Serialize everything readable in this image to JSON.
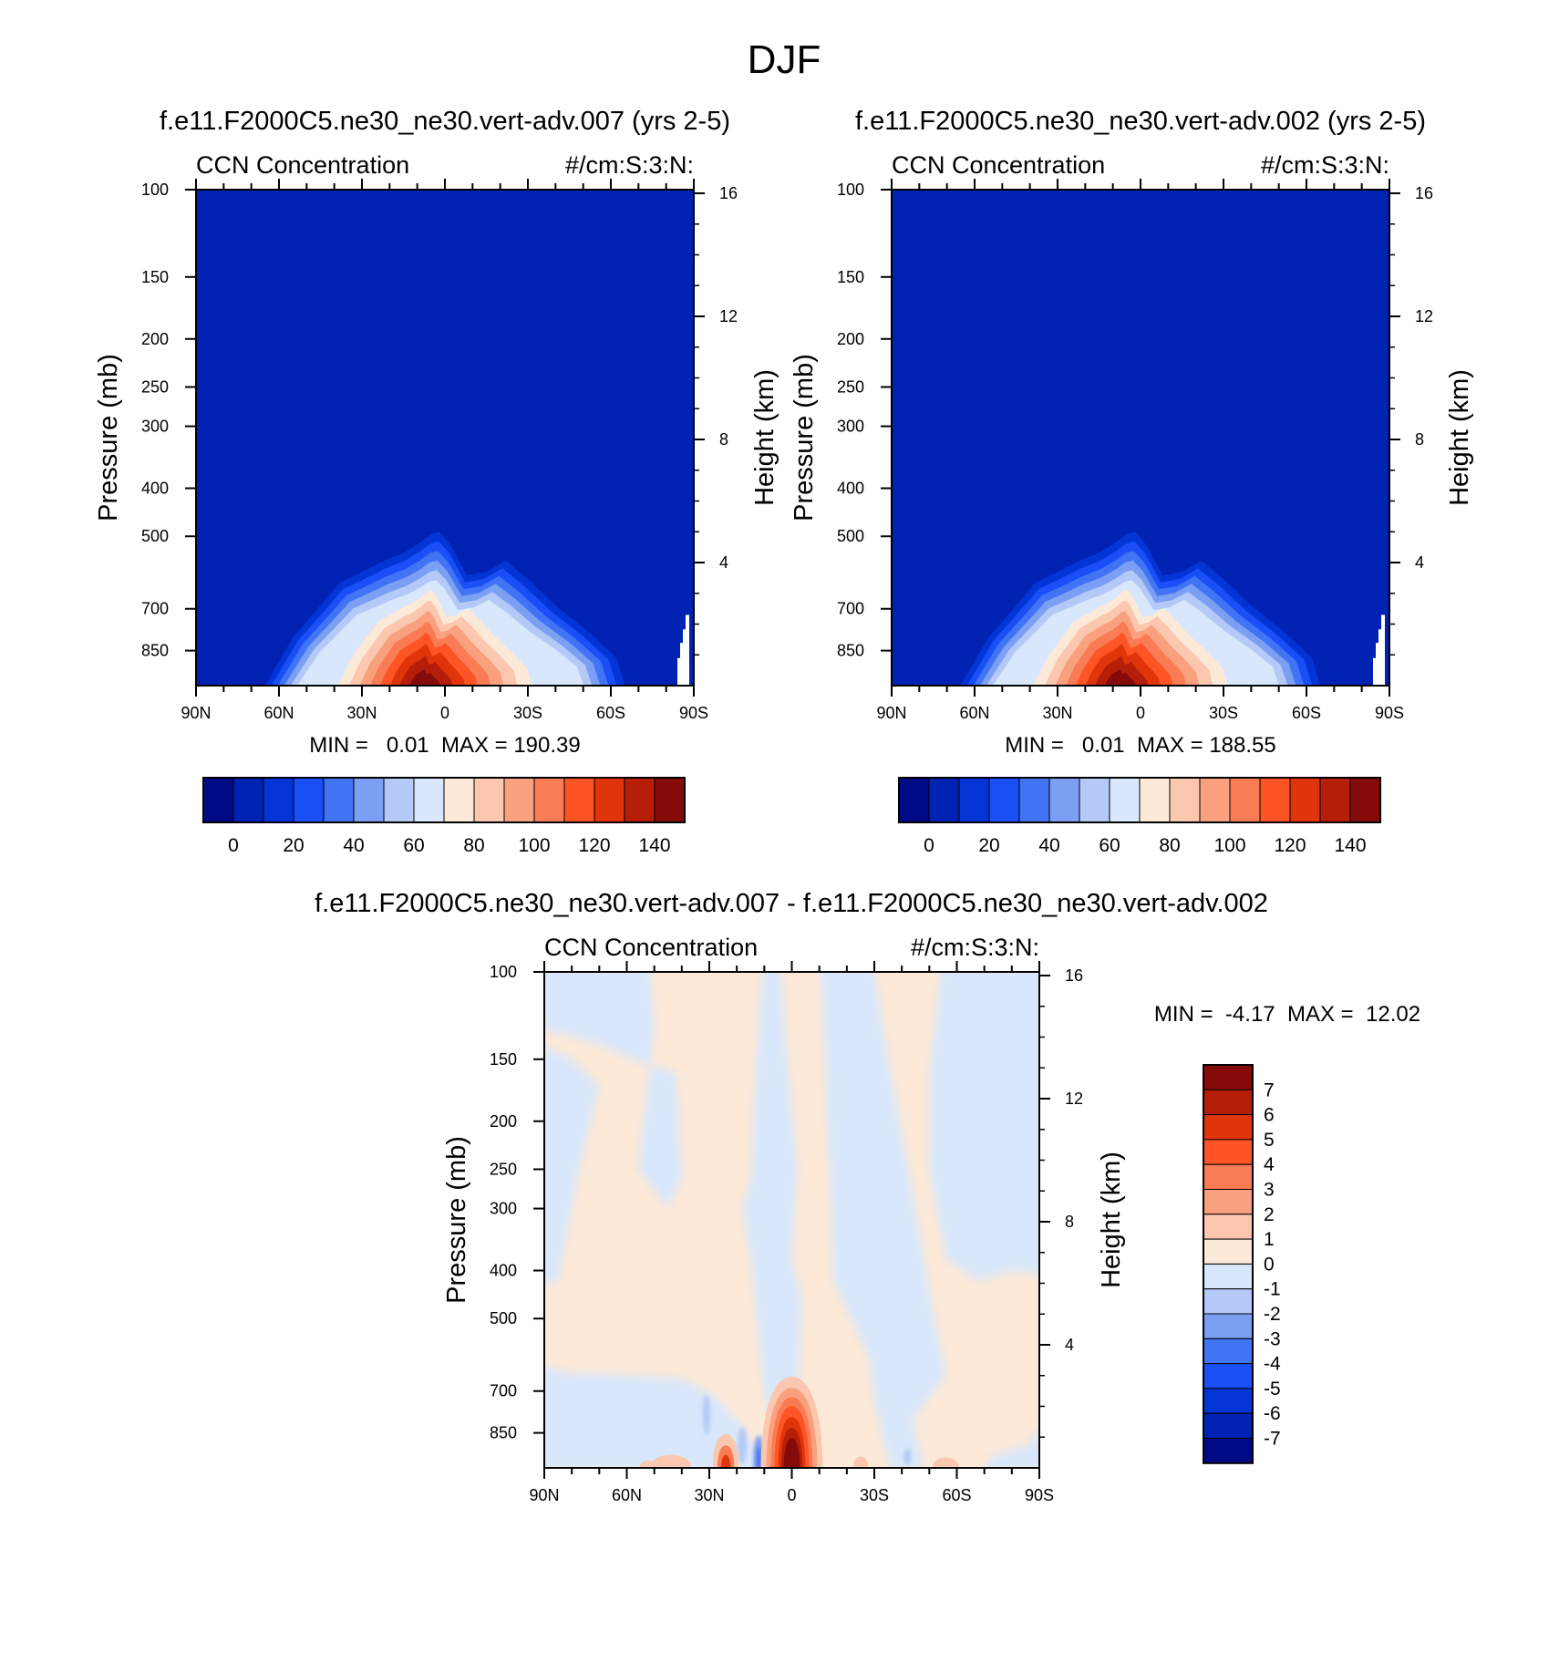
{
  "figure_title": "DJF",
  "colors": {
    "ccn_palette": [
      "#000a86",
      "#0022b2",
      "#0335d6",
      "#1a4ef7",
      "#4074f5",
      "#7a9ff3",
      "#b4c9f7",
      "#d8e7fb",
      "#fde9d7",
      "#fbc7ae",
      "#f9a17f",
      "#fa7c54",
      "#fd5526",
      "#e0350a",
      "#b51e08",
      "#850b0b"
    ],
    "diff_palette": [
      "#000a86",
      "#0022b2",
      "#0335d6",
      "#1a4ef7",
      "#4074f5",
      "#7a9ff3",
      "#b4c9f7",
      "#d8e7fb",
      "#fde9d7",
      "#fbc7ae",
      "#f9a17f",
      "#fa7c54",
      "#fd5526",
      "#e0350a",
      "#b51e08",
      "#850b0b"
    ]
  },
  "chart_data": [
    {
      "type": "heatmap",
      "title": "f.e11.F2000C5.ne30_ne30.vert-adv.007 (yrs 2-5)",
      "left_string": "CCN Concentration",
      "right_string": "#/cm:S:3:N:",
      "xlabel": "",
      "ylabel": "Pressure (mb)",
      "ylabel_right": "Height (km)",
      "x_ticks": [
        "90N",
        "60N",
        "30N",
        "0",
        "30S",
        "60S",
        "90S"
      ],
      "x_tick_values": [
        90,
        60,
        30,
        0,
        -30,
        -60,
        -90
      ],
      "y_ticks": [
        "100",
        "150",
        "200",
        "250",
        "300",
        "400",
        "500",
        "700",
        "850"
      ],
      "y_tick_values": [
        100,
        150,
        200,
        250,
        300,
        400,
        500,
        700,
        850
      ],
      "y_range": [
        100,
        1000
      ],
      "height_ticks": [
        "16",
        "12",
        "8",
        "4"
      ],
      "height_tick_values": [
        16,
        12,
        8,
        4
      ],
      "min_max": "MIN =   0.01  MAX = 190.39",
      "min": 0.01,
      "max": 190.39,
      "colorbar_labels": [
        "0",
        "20",
        "40",
        "60",
        "80",
        "100",
        "120",
        "140"
      ],
      "colorbar_levels": [
        0,
        10,
        20,
        30,
        40,
        50,
        60,
        70,
        80,
        90,
        100,
        110,
        120,
        130,
        140
      ],
      "bulge_profile": {
        "lat": [
          65,
          55,
          45,
          38,
          30,
          22,
          15,
          9,
          5,
          2,
          -2,
          -8,
          -15,
          -22,
          -30,
          -40,
          -52,
          -62,
          -65
        ],
        "top_pressure": [
          1000,
          800,
          690,
          620,
          590,
          560,
          540,
          515,
          495,
          490,
          520,
          600,
          590,
          560,
          610,
          690,
          780,
          880,
          1000
        ]
      },
      "max_center": {
        "lat": 8,
        "pressure": 1000
      }
    },
    {
      "type": "heatmap",
      "title": "f.e11.F2000C5.ne30_ne30.vert-adv.002 (yrs 2-5)",
      "left_string": "CCN Concentration",
      "right_string": "#/cm:S:3:N:",
      "xlabel": "",
      "ylabel": "Pressure (mb)",
      "ylabel_right": "Height (km)",
      "x_ticks": [
        "90N",
        "60N",
        "30N",
        "0",
        "30S",
        "60S",
        "90S"
      ],
      "x_tick_values": [
        90,
        60,
        30,
        0,
        -30,
        -60,
        -90
      ],
      "y_ticks": [
        "100",
        "150",
        "200",
        "250",
        "300",
        "400",
        "500",
        "700",
        "850"
      ],
      "y_tick_values": [
        100,
        150,
        200,
        250,
        300,
        400,
        500,
        700,
        850
      ],
      "y_range": [
        100,
        1000
      ],
      "height_ticks": [
        "16",
        "12",
        "8",
        "4"
      ],
      "height_tick_values": [
        16,
        12,
        8,
        4
      ],
      "min_max": "MIN =   0.01  MAX = 188.55",
      "min": 0.01,
      "max": 188.55,
      "colorbar_labels": [
        "0",
        "20",
        "40",
        "60",
        "80",
        "100",
        "120",
        "140"
      ],
      "colorbar_levels": [
        0,
        10,
        20,
        30,
        40,
        50,
        60,
        70,
        80,
        90,
        100,
        110,
        120,
        130,
        140
      ],
      "bulge_profile": {
        "lat": [
          65,
          55,
          45,
          38,
          30,
          22,
          15,
          9,
          5,
          2,
          -2,
          -8,
          -15,
          -22,
          -30,
          -40,
          -52,
          -62,
          -65
        ],
        "top_pressure": [
          1000,
          800,
          690,
          620,
          590,
          560,
          540,
          515,
          495,
          490,
          520,
          600,
          590,
          560,
          610,
          690,
          780,
          880,
          1000
        ]
      },
      "max_center": {
        "lat": 8,
        "pressure": 1000
      }
    },
    {
      "type": "heatmap",
      "title": "f.e11.F2000C5.ne30_ne30.vert-adv.007 - f.e11.F2000C5.ne30_ne30.vert-adv.002",
      "left_string": "CCN Concentration",
      "right_string": "#/cm:S:3:N:",
      "xlabel": "",
      "ylabel": "Pressure (mb)",
      "ylabel_right": "Height (km)",
      "x_ticks": [
        "90N",
        "60N",
        "30N",
        "0",
        "30S",
        "60S",
        "90S"
      ],
      "x_tick_values": [
        90,
        60,
        30,
        0,
        -30,
        -60,
        -90
      ],
      "y_ticks": [
        "100",
        "150",
        "200",
        "250",
        "300",
        "400",
        "500",
        "700",
        "850"
      ],
      "y_tick_values": [
        100,
        150,
        200,
        250,
        300,
        400,
        500,
        700,
        850
      ],
      "y_range": [
        100,
        1000
      ],
      "height_ticks": [
        "16",
        "12",
        "8",
        "4"
      ],
      "height_tick_values": [
        16,
        12,
        8,
        4
      ],
      "min_max": "MIN =  -4.17  MAX =  12.02",
      "min": -4.17,
      "max": 12.02,
      "colorbar_labels": [
        "7",
        "6",
        "5",
        "4",
        "3",
        "2",
        "1",
        "0",
        "-1",
        "-2",
        "-3",
        "-4",
        "-5",
        "-6",
        "-7"
      ],
      "colorbar_levels": [
        7,
        6,
        5,
        4,
        3,
        2,
        1,
        0,
        -1,
        -2,
        -3,
        -4,
        -5,
        -6,
        -7
      ],
      "max_center": {
        "lat": 0,
        "pressure": 950
      }
    }
  ]
}
